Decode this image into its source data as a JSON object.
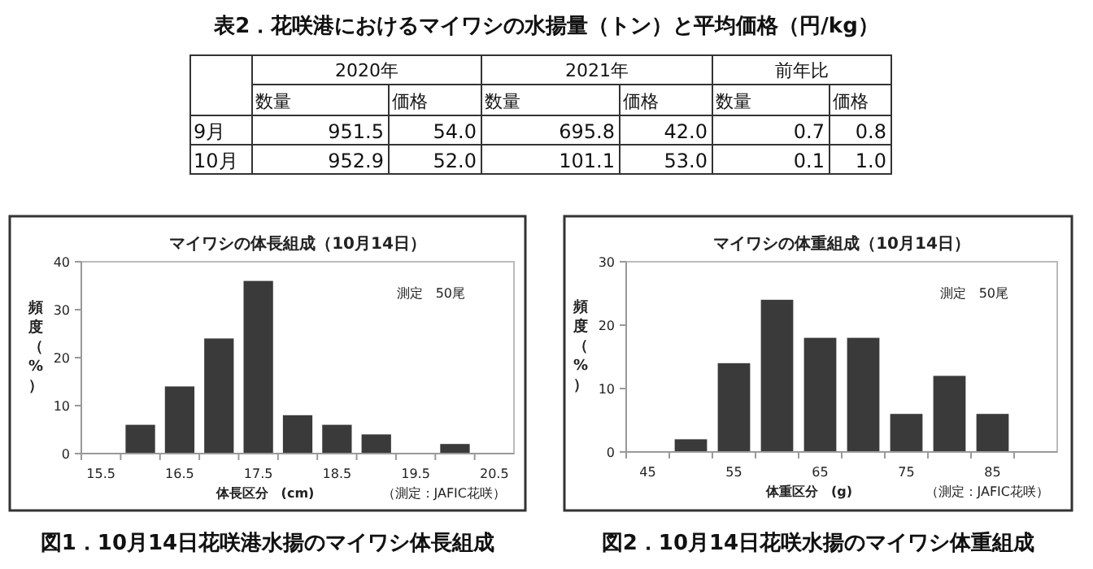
{
  "chart_data": [
    {
      "type": "other",
      "title": "表2．花咲港におけるマイワシの水揚量（トン）と平均価格（円/kg）",
      "annotations": [
        "2020年",
        "2021年",
        "前年比",
        "数量",
        "価格",
        "数量",
        "価格",
        "数量",
        "価格",
        "9月",
        "951.5",
        "54.0",
        "695.8",
        "42.0",
        "0.7",
        "0.8",
        "10月",
        "952.9",
        "52.0",
        "101.1",
        "53.0",
        "0.1",
        "1.0"
      ]
    },
    {
      "type": "bar",
      "title": "マイワシの体長組成（10月14日）",
      "xlabel": "体長区分　(cm)",
      "ylabel": "頻度（%）",
      "categories": [
        "15.5",
        null,
        "16.5",
        null,
        "17.5",
        null,
        "18.5",
        null,
        "19.5",
        null,
        "20.5"
      ],
      "values": [
        0,
        6,
        14,
        24,
        36,
        8,
        6,
        4,
        0,
        2,
        0
      ],
      "color": "#3a3a3a",
      "ylim": [
        0,
        40
      ],
      "yticks": [
        0,
        10,
        20,
        30,
        40
      ],
      "grid": false,
      "annotations": [
        "測定　50尾",
        "（測定：JAFIC花咲）",
        "図1．10月14日花咲港水揚のマイワシ体長組成"
      ]
    },
    {
      "type": "bar",
      "title": "マイワシの体重組成（10月14日）",
      "xlabel": "体重区分　(g)",
      "ylabel": "頻度（%）",
      "categories": [
        "45",
        null,
        "55",
        null,
        "65",
        null,
        "75",
        null,
        "85",
        null
      ],
      "values": [
        0,
        2,
        14,
        24,
        18,
        18,
        6,
        12,
        6,
        0
      ],
      "color": "#3a3a3a",
      "ylim": [
        0,
        30
      ],
      "yticks": [
        0,
        10,
        20,
        30
      ],
      "grid": false,
      "annotations": [
        "測定　50尾",
        "（測定：JAFIC花咲）",
        "図2．10月14日花咲水揚のマイワシ体重組成"
      ]
    }
  ]
}
